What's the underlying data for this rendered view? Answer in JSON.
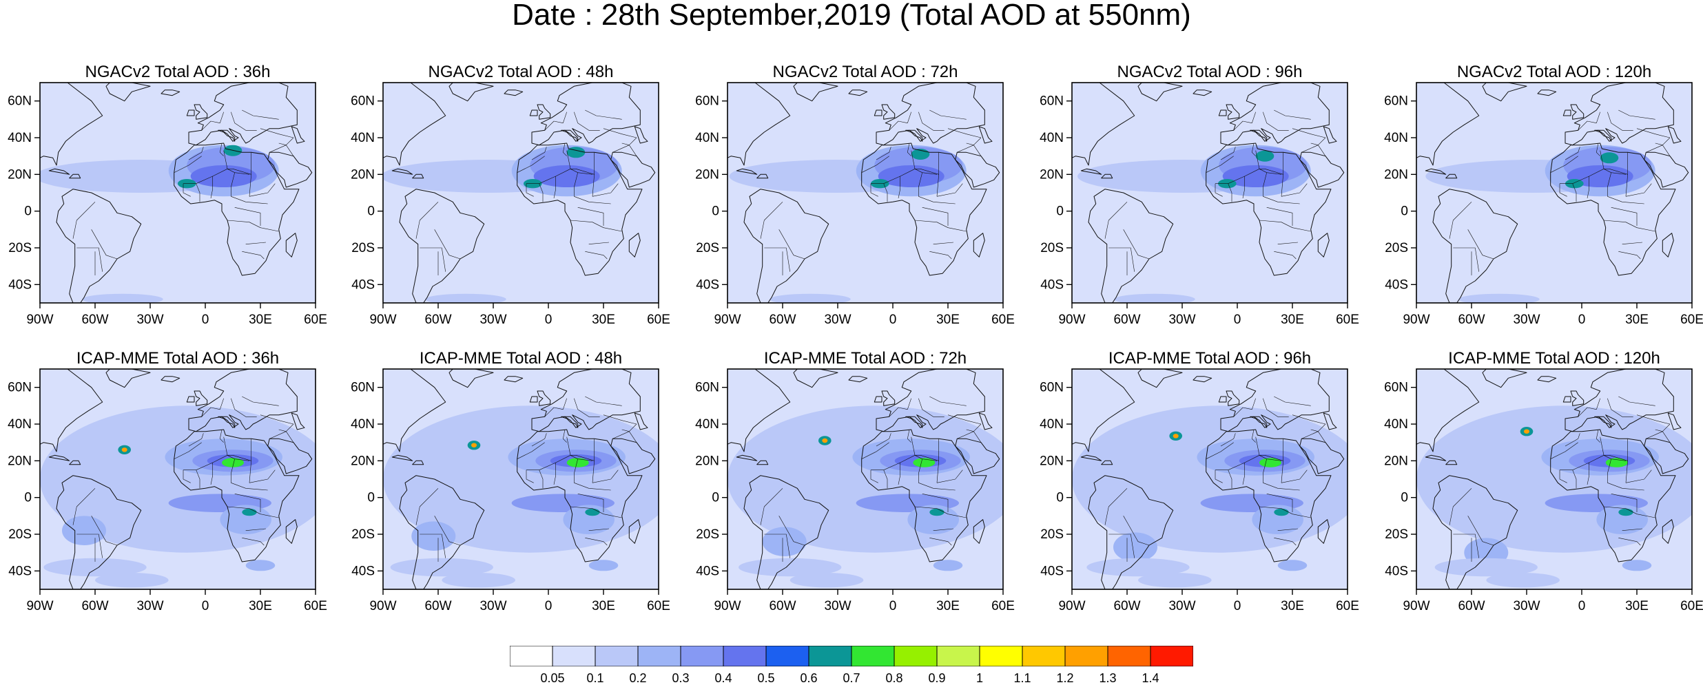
{
  "title": "Date : 28th September,2019 (Total AOD at 550nm)",
  "lon_ticks": [
    "90W",
    "60W",
    "30W",
    "0",
    "30E",
    "60E"
  ],
  "lat_ticks": [
    "60N",
    "40N",
    "20N",
    "0",
    "20S",
    "40S"
  ],
  "map_extent": {
    "lon": [
      -90,
      60
    ],
    "lat": [
      -50,
      70
    ]
  },
  "rows": [
    {
      "model": "NGACv2",
      "panels": [
        {
          "title": "NGACv2 Total AOD : 36h"
        },
        {
          "title": "NGACv2 Total AOD : 48h"
        },
        {
          "title": "NGACv2 Total AOD : 72h"
        },
        {
          "title": "NGACv2 Total AOD : 96h"
        },
        {
          "title": "NGACv2 Total AOD : 120h"
        }
      ]
    },
    {
      "model": "ICAP-MME",
      "panels": [
        {
          "title": "ICAP-MME Total AOD : 36h"
        },
        {
          "title": "ICAP-MME Total AOD : 48h"
        },
        {
          "title": "ICAP-MME Total AOD : 72h"
        },
        {
          "title": "ICAP-MME Total AOD : 96h"
        },
        {
          "title": "ICAP-MME Total AOD : 120h"
        }
      ]
    }
  ],
  "colorbar": {
    "labels": [
      "0.05",
      "0.1",
      "0.2",
      "0.3",
      "0.4",
      "0.5",
      "0.6",
      "0.7",
      "0.8",
      "0.9",
      "1",
      "1.1",
      "1.2",
      "1.3",
      "1.4"
    ],
    "colors": [
      "#ffffff",
      "#d8e0fc",
      "#bac8f8",
      "#9db4f6",
      "#8699f3",
      "#6474ee",
      "#1c60f0",
      "#0c9696",
      "#32e632",
      "#96f000",
      "#c8f54b",
      "#ffff00",
      "#ffc800",
      "#ffa000",
      "#ff6400",
      "#ff1a00"
    ]
  }
}
